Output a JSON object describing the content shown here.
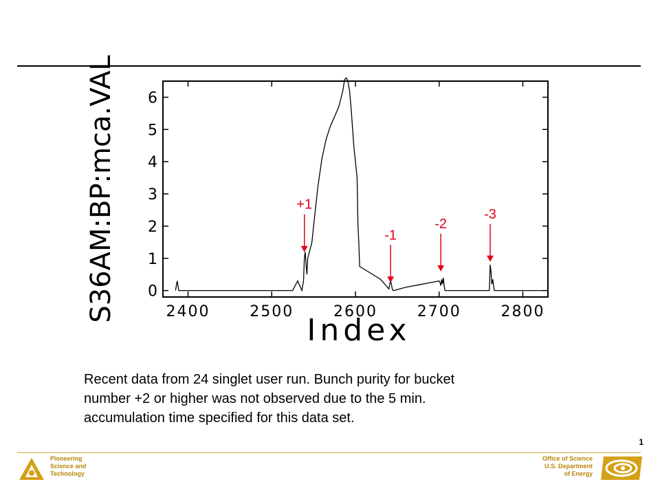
{
  "colors": {
    "accent": "#e0001b",
    "footer": "#b8860b",
    "rule": "#000000"
  },
  "chart_data": {
    "type": "line",
    "xlabel": "Index",
    "ylabel": "S36AM:BP:mca.VAL",
    "xlim": [
      2370,
      2830
    ],
    "ylim": [
      -0.2,
      6.5
    ],
    "x_ticks": [
      "2400",
      "2500",
      "2600",
      "2700",
      "2800"
    ],
    "y_ticks": [
      "0",
      "1",
      "2",
      "3",
      "4",
      "5",
      "6"
    ],
    "grid": false,
    "series": [
      {
        "x": [
          2385,
          2386,
          2387,
          2388,
          2389,
          2390,
          2391,
          2525,
          2528,
          2531,
          2534,
          2536,
          2538,
          2539,
          2540,
          2541,
          2542,
          2543,
          2544,
          2546,
          2548,
          2550,
          2555,
          2560,
          2565,
          2570,
          2575,
          2580,
          2585,
          2587,
          2589,
          2591,
          2593,
          2595,
          2598,
          2600,
          2602,
          2603,
          2604,
          2605,
          2630,
          2640,
          2641,
          2642,
          2643,
          2644,
          2645,
          2646,
          2660,
          2680,
          2700,
          2701,
          2702,
          2703,
          2704,
          2705,
          2706,
          2707,
          2708,
          2760,
          2761,
          2762,
          2763,
          2764,
          2765,
          2766,
          2767,
          2825
        ],
        "y": [
          0,
          0.15,
          0.3,
          0.15,
          0,
          0,
          0,
          0,
          0.15,
          0.3,
          0.12,
          0,
          0.3,
          1,
          1.2,
          0.8,
          0.5,
          1,
          1.1,
          1.3,
          1.5,
          2,
          3.2,
          4.1,
          4.7,
          5.1,
          5.4,
          5.7,
          6.2,
          6.55,
          6.6,
          6.5,
          6.2,
          5.6,
          4.5,
          4,
          3.5,
          2,
          1.5,
          0.75,
          0.35,
          0.05,
          0.2,
          0.3,
          0.2,
          0.05,
          0,
          0,
          0.1,
          0.2,
          0.3,
          0.25,
          0.15,
          0.35,
          0.2,
          0.4,
          0.15,
          0,
          0,
          0,
          0.8,
          0.6,
          0.2,
          0.35,
          0.15,
          0,
          0,
          0
        ]
      }
    ],
    "annotations": [
      {
        "text": "+1",
        "x": 2539,
        "y": 1.15
      },
      {
        "text": "-1",
        "x": 2642,
        "y": 0.2
      },
      {
        "text": "-2",
        "x": 2702,
        "y": 0.55
      },
      {
        "text": "-3",
        "x": 2761,
        "y": 0.85
      }
    ]
  },
  "caption": {
    "lines": [
      "Recent data from 24 singlet user run. Bunch purity for bucket",
      "number +2 or higher was not observed due to the 5 min.",
      "accumulation time specified for this data set."
    ]
  },
  "footer": {
    "left_lines": [
      "Pioneering",
      "Science and",
      "Technology"
    ],
    "right_lines": [
      "Office of Science",
      "U.S. Department",
      "of Energy"
    ],
    "page_number": "1"
  }
}
